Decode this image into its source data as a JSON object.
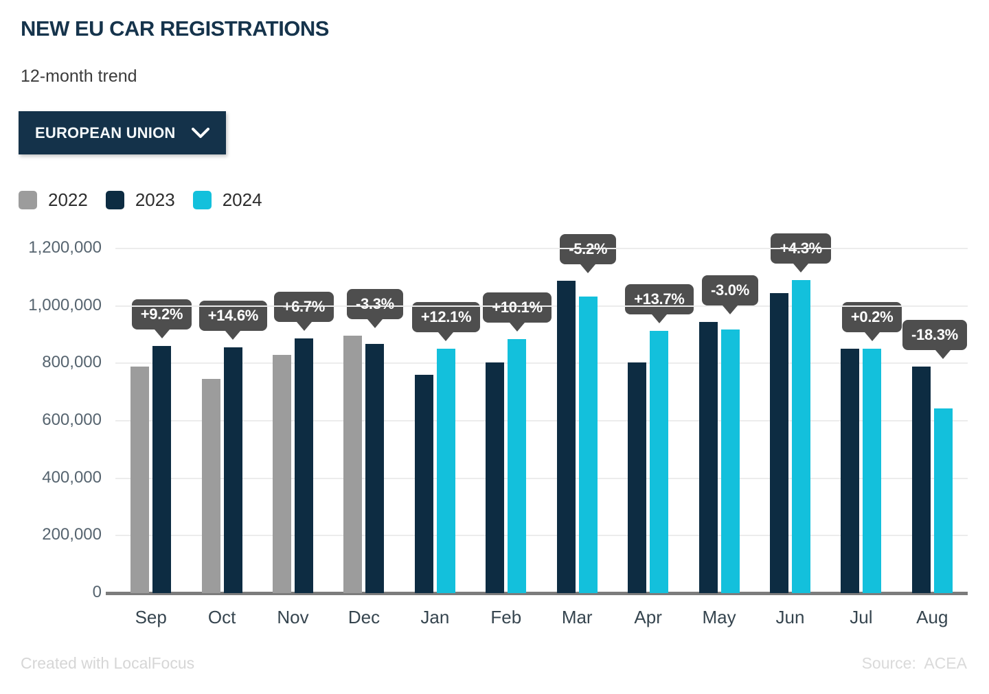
{
  "header": {
    "title": "NEW EU CAR REGISTRATIONS",
    "subtitle": "12-month trend",
    "region_selector": {
      "label": "EUROPEAN UNION",
      "icon": "chevron-down-icon"
    }
  },
  "legend": [
    {
      "label": "2022",
      "color": "#9c9c9c"
    },
    {
      "label": "2023",
      "color": "#0d2c42"
    },
    {
      "label": "2024",
      "color": "#13c0dc"
    }
  ],
  "chart_data": {
    "type": "bar",
    "title": "NEW EU CAR REGISTRATIONS",
    "subtitle": "12-month trend",
    "categories": [
      "Sep",
      "Oct",
      "Nov",
      "Dec",
      "Jan",
      "Feb",
      "Mar",
      "Apr",
      "May",
      "Jun",
      "Jul",
      "Aug"
    ],
    "series": [
      {
        "name": "2022",
        "color": "#9c9c9c",
        "values": [
          788000,
          746000,
          830000,
          897000,
          null,
          null,
          null,
          null,
          null,
          null,
          null,
          null
        ]
      },
      {
        "name": "2023",
        "color": "#0d2c42",
        "values": [
          861000,
          855000,
          886000,
          867000,
          760000,
          803000,
          1088000,
          803000,
          945000,
          1045000,
          850000,
          788000
        ]
      },
      {
        "name": "2024",
        "color": "#13c0dc",
        "values": [
          null,
          null,
          null,
          null,
          852000,
          884000,
          1032000,
          914000,
          917000,
          1090000,
          852000,
          644000
        ]
      }
    ],
    "pct_labels": [
      "+9.2%",
      "+14.6%",
      "+6.7%",
      "-3.3%",
      "+12.1%",
      "+10.1%",
      "-5.2%",
      "+13.7%",
      "-3.0%",
      "+4.3%",
      "+0.2%",
      "-18.3%"
    ],
    "ylim": [
      0,
      1200000
    ],
    "yticks": [
      "0",
      "200,000",
      "400,000",
      "600,000",
      "800,000",
      "1,000,000",
      "1,200,000"
    ],
    "xlabel": "",
    "ylabel": "",
    "grid": true,
    "legend_position": "top-left"
  },
  "footer": {
    "left": "Created with LocalFocus",
    "right": "Source:  ACEA"
  }
}
